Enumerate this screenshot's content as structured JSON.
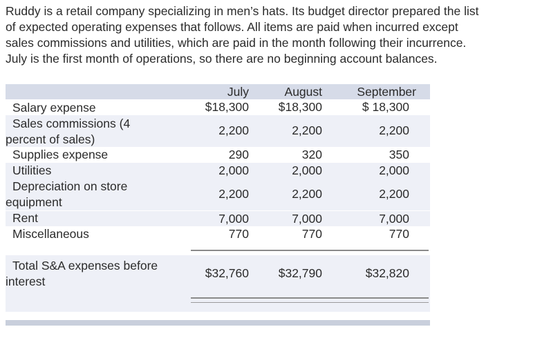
{
  "intro": {
    "lines": [
      "Ruddy is a retail company specializing in men’s hats. Its budget director prepared the list",
      "of expected operating expenses that follows. All items are paid when incurred except",
      "sales commissions and utilities, which are paid in the month following their incurrence.",
      "July is the first month of operations, so there are no beginning account balances."
    ]
  },
  "table": {
    "headers": [
      "July",
      "August",
      "September"
    ],
    "rows": [
      {
        "label_1": "Salary expense",
        "label_2": "",
        "values": [
          "$18,300",
          "$18,300",
          "$ 18,300"
        ]
      },
      {
        "label_1": "Sales commissions (4",
        "label_2": "percent of sales)",
        "values": [
          "2,200",
          "2,200",
          "2,200"
        ]
      },
      {
        "label_1": "Supplies expense",
        "label_2": "",
        "values": [
          "290",
          "320",
          "350"
        ]
      },
      {
        "label_1": "Utilities",
        "label_2": "",
        "values": [
          "2,000",
          "2,000",
          "2,000"
        ]
      },
      {
        "label_1": "Depreciation on store",
        "label_2": "equipment",
        "values": [
          "2,200",
          "2,200",
          "2,200"
        ]
      },
      {
        "label_1": "Rent",
        "label_2": "",
        "values": [
          "7,000",
          "7,000",
          "7,000"
        ]
      },
      {
        "label_1": "Miscellaneous",
        "label_2": "",
        "values": [
          "770",
          "770",
          "770"
        ]
      }
    ],
    "total": {
      "label_1": "Total S&A expenses before",
      "label_2": "interest",
      "values": [
        "$32,760",
        "$32,790",
        "$32,820"
      ]
    }
  }
}
